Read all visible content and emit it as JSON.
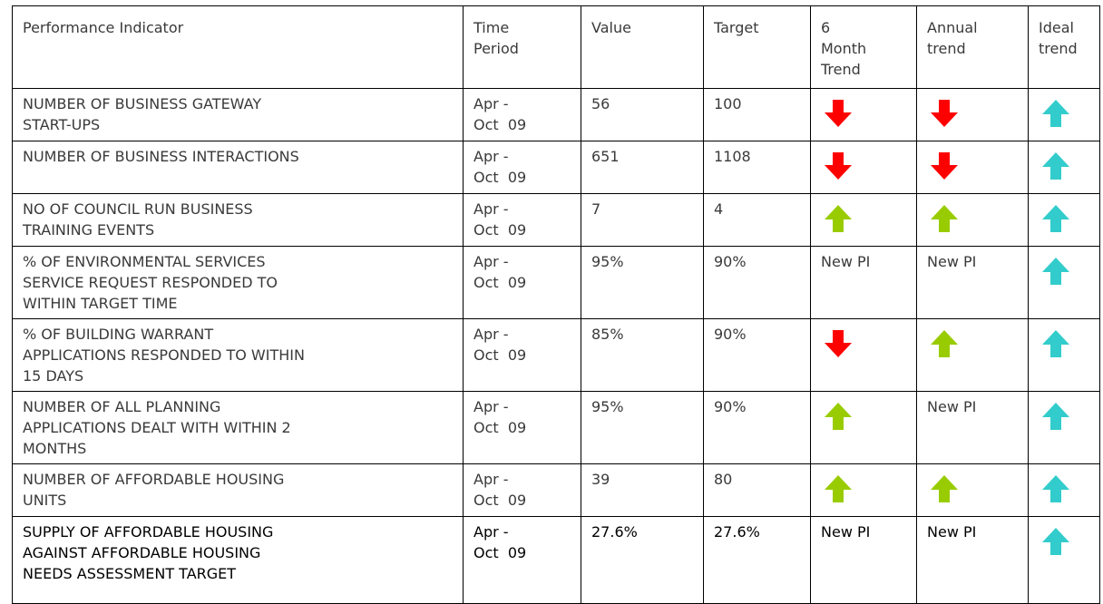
{
  "table": {
    "headers": [
      "Performance Indicator",
      "Time\nPeriod",
      "Value",
      "Target",
      "6\nMonth\nTrend",
      "Annual\ntrend",
      "Ideal\ntrend"
    ],
    "rows": [
      {
        "indicator": "NUMBER OF BUSINESS GATEWAY\nSTART-UPS",
        "period": "Apr -\nOct  09",
        "value": "56",
        "target": "100"
      },
      {
        "indicator": "NUMBER OF BUSINESS INTERACTIONS",
        "period": "Apr -\nOct  09",
        "value": "651",
        "target": "1108"
      },
      {
        "indicator": "NO OF COUNCIL RUN BUSINESS\nTRAINING EVENTS",
        "period": "Apr -\nOct  09",
        "value": "7",
        "target": "4"
      },
      {
        "indicator": "% OF ENVIRONMENTAL SERVICES\nSERVICE REQUEST RESPONDED TO\nWITHIN TARGET TIME",
        "period": "Apr -\nOct  09",
        "value": "95%",
        "target": "90%",
        "six_month_trend": "New PI",
        "annual_trend": "New PI"
      },
      {
        "indicator": "% OF BUILDING WARRANT\nAPPLICATIONS RESPONDED TO WITHIN\n15 DAYS",
        "period": "Apr -\nOct  09",
        "value": "85%",
        "target": "90%"
      },
      {
        "indicator": "NUMBER OF ALL PLANNING\nAPPLICATIONS DEALT WITH WITHIN 2\nMONTHS",
        "period": "Apr -\nOct  09",
        "value": "95%",
        "target": "90%",
        "annual_trend": "New PI"
      },
      {
        "indicator": "NUMBER OF AFFORDABLE HOUSING\nUNITS",
        "period": "Apr -\nOct  09",
        "value": "39",
        "target": "80"
      },
      {
        "indicator": "SUPPLY OF AFFORDABLE HOUSING\nAGAINST AFFORDABLE HOUSING\nNEEDS ASSESSMENT TARGET",
        "period": "Apr -\nOct  09",
        "value": "27.6%",
        "target": "27.6%",
        "six_month_trend": "New PI",
        "annual_trend": "New PI"
      }
    ]
  }
}
